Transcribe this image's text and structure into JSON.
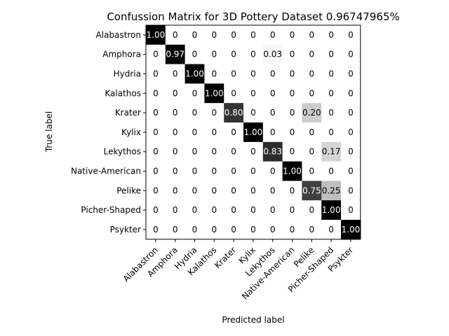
{
  "chart_data": {
    "type": "heatmap",
    "title": "Confussion Matrix for 3D Pottery Dataset 0.96747965%",
    "xlabel": "Predicted label",
    "ylabel": "True label",
    "colormap": "greys",
    "color_range": [
      0,
      1
    ],
    "grid": false,
    "row_labels": [
      "Alabastron",
      "Amphora",
      "Hydria",
      "Kalathos",
      "Krater",
      "Kylix",
      "Lekythos",
      "Native-American",
      "Pelike",
      "Picher-Shaped",
      "Psykter"
    ],
    "col_labels": [
      "Alabastron",
      "Amphora",
      "Hydria",
      "Kalathos",
      "Krater",
      "Kylix",
      "Lekythos",
      "Native-American",
      "Pelike",
      "Picher-Shaped",
      "Psykter"
    ],
    "values": [
      [
        1.0,
        0,
        0,
        0,
        0,
        0,
        0,
        0,
        0,
        0,
        0
      ],
      [
        0,
        0.97,
        0,
        0,
        0,
        0,
        0.03,
        0,
        0,
        0,
        0
      ],
      [
        0,
        0,
        1.0,
        0,
        0,
        0,
        0,
        0,
        0,
        0,
        0
      ],
      [
        0,
        0,
        0,
        1.0,
        0,
        0,
        0,
        0,
        0,
        0,
        0
      ],
      [
        0,
        0,
        0,
        0,
        0.8,
        0,
        0,
        0,
        0.2,
        0,
        0
      ],
      [
        0,
        0,
        0,
        0,
        0,
        1.0,
        0,
        0,
        0,
        0,
        0
      ],
      [
        0,
        0,
        0,
        0,
        0,
        0,
        0.83,
        0,
        0,
        0.17,
        0
      ],
      [
        0,
        0,
        0,
        0,
        0,
        0,
        0,
        1.0,
        0,
        0,
        0
      ],
      [
        0,
        0,
        0,
        0,
        0,
        0,
        0,
        0,
        0.75,
        0.25,
        0
      ],
      [
        0,
        0,
        0,
        0,
        0,
        0,
        0,
        0,
        0,
        1.0,
        0
      ],
      [
        0,
        0,
        0,
        0,
        0,
        0,
        0,
        0,
        0,
        0,
        1.0
      ]
    ],
    "cell_labels": [
      [
        "1.00",
        "0",
        "0",
        "0",
        "0",
        "0",
        "0",
        "0",
        "0",
        "0",
        "0"
      ],
      [
        "0",
        "0.97",
        "0",
        "0",
        "0",
        "0",
        "0.03",
        "0",
        "0",
        "0",
        "0"
      ],
      [
        "0",
        "0",
        "1.00",
        "0",
        "0",
        "0",
        "0",
        "0",
        "0",
        "0",
        "0"
      ],
      [
        "0",
        "0",
        "0",
        "1.00",
        "0",
        "0",
        "0",
        "0",
        "0",
        "0",
        "0"
      ],
      [
        "0",
        "0",
        "0",
        "0",
        "0.80",
        "0",
        "0",
        "0",
        "0.20",
        "0",
        "0"
      ],
      [
        "0",
        "0",
        "0",
        "0",
        "0",
        "1.00",
        "0",
        "0",
        "0",
        "0",
        "0"
      ],
      [
        "0",
        "0",
        "0",
        "0",
        "0",
        "0",
        "0.83",
        "0",
        "0",
        "0.17",
        "0"
      ],
      [
        "0",
        "0",
        "0",
        "0",
        "0",
        "0",
        "0",
        "1.00",
        "0",
        "0",
        "0"
      ],
      [
        "0",
        "0",
        "0",
        "0",
        "0",
        "0",
        "0",
        "0",
        "0.75",
        "0.25",
        "0"
      ],
      [
        "0",
        "0",
        "0",
        "0",
        "0",
        "0",
        "0",
        "0",
        "0",
        "1.00",
        "0"
      ],
      [
        "0",
        "0",
        "0",
        "0",
        "0",
        "0",
        "0",
        "0",
        "0",
        "0",
        "1.00"
      ]
    ]
  }
}
